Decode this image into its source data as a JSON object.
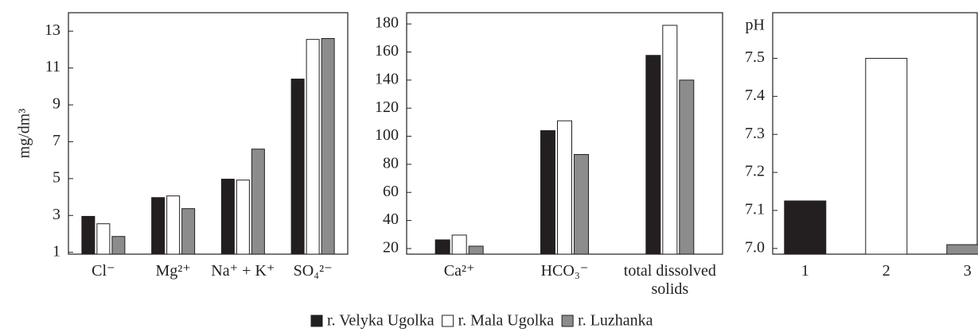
{
  "chart_data": [
    {
      "type": "bar",
      "ylabel": "mg/dm³",
      "categories": [
        "Cl⁻",
        "Mg²⁺",
        "Na⁺ + K⁺",
        "SO₄²⁻"
      ],
      "series": [
        {
          "name": "r. Velyka Ugolka",
          "color": "#231f20",
          "values": [
            2.95,
            3.97,
            4.97,
            10.4
          ]
        },
        {
          "name": "r. Mala Ugolka",
          "color": "#ffffff",
          "values": [
            2.55,
            4.06,
            4.92,
            12.55
          ]
        },
        {
          "name": "r. Luzhanka",
          "color": "#8c8c8c",
          "values": [
            1.86,
            3.37,
            6.6,
            12.6
          ]
        }
      ],
      "ylim": [
        0.9,
        14
      ],
      "yticks": [
        1,
        3,
        5,
        7,
        9,
        11,
        13
      ]
    },
    {
      "type": "bar",
      "categories": [
        "Ca²⁺",
        "HCO₃⁻",
        "total dissolved solids"
      ],
      "series": [
        {
          "color": "#231f20",
          "values": [
            26.2,
            104,
            157.6
          ]
        },
        {
          "color": "#ffffff",
          "values": [
            29.6,
            111,
            179
          ]
        },
        {
          "color": "#8c8c8c",
          "values": [
            21.7,
            87,
            140
          ]
        }
      ],
      "ylim": [
        16,
        188
      ],
      "yticks": [
        20,
        40,
        60,
        80,
        100,
        120,
        140,
        160,
        180
      ]
    },
    {
      "type": "bar",
      "ylabel": "pH",
      "categories": [
        "1",
        "2",
        "3"
      ],
      "values": [
        7.125,
        7.5,
        7.01
      ],
      "colors": [
        "#231f20",
        "#ffffff",
        "#8c8c8c"
      ],
      "ylim": [
        6.985,
        7.62
      ],
      "yticks": [
        {
          "value": 7,
          "label": "7.0"
        },
        7.1,
        7.2,
        7.3,
        7.4,
        7.5
      ]
    }
  ]
}
